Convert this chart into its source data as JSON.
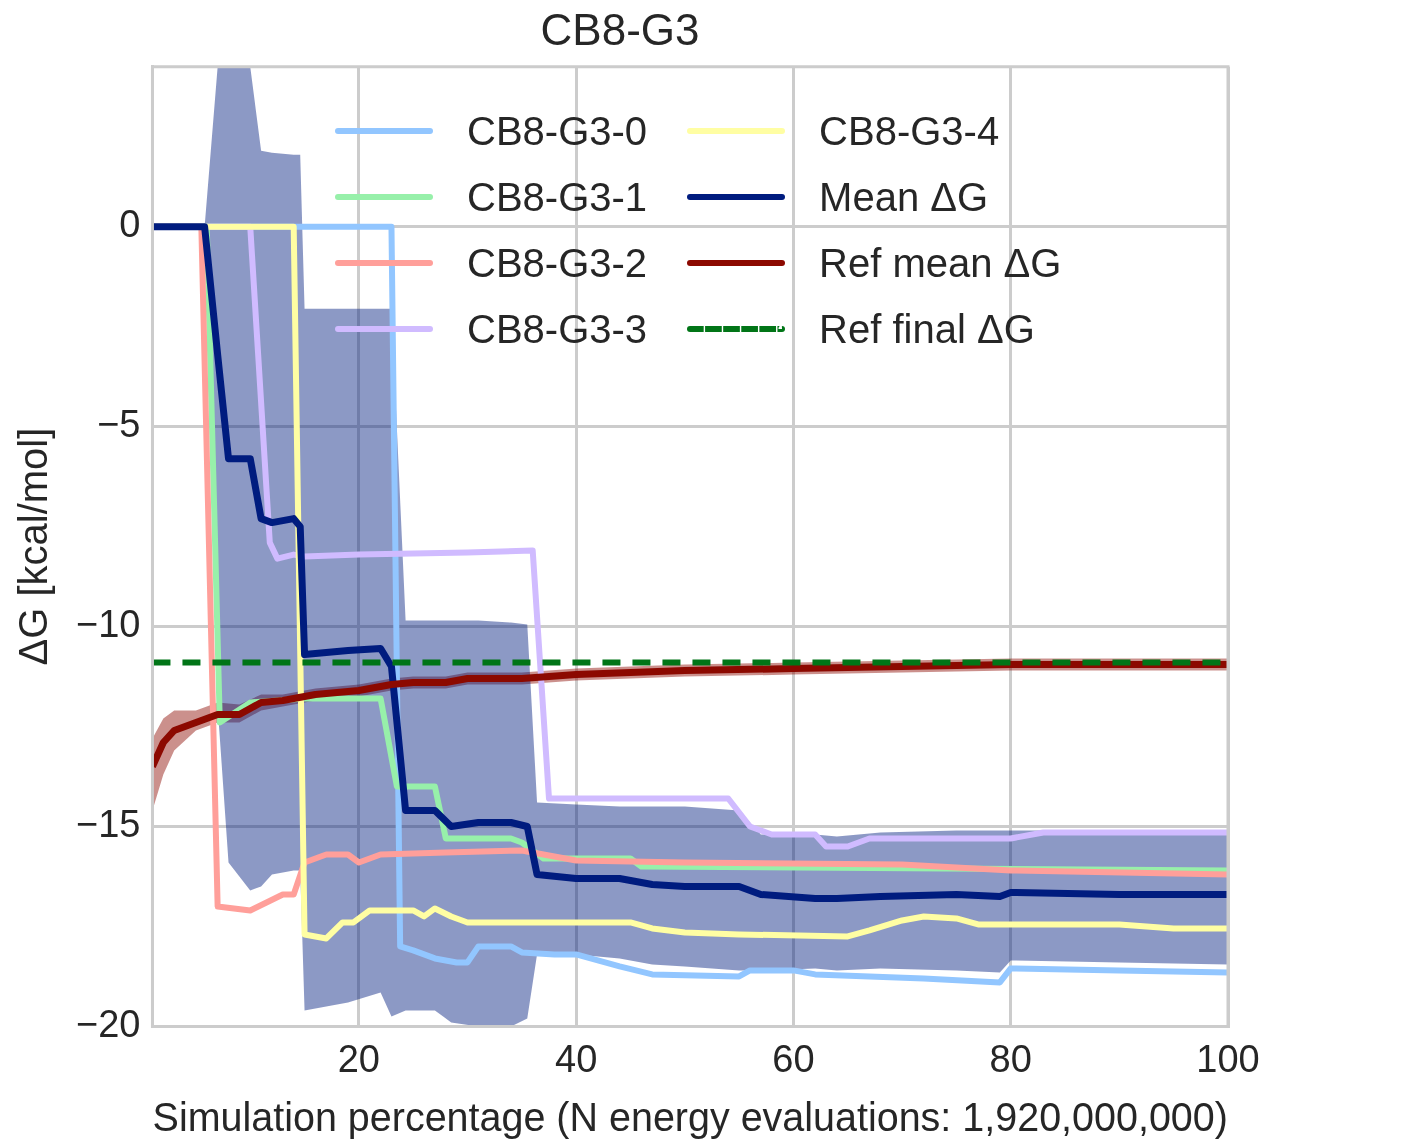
{
  "chart_data": {
    "type": "line",
    "title": "CB8-G3",
    "xlabel": "Simulation percentage (N energy evaluations: 1,920,000,000)",
    "ylabel": "ΔG [kcal/mol]",
    "xlim": [
      1,
      100
    ],
    "ylim": [
      -20,
      4
    ],
    "xticks": [
      20,
      40,
      60,
      80,
      100
    ],
    "yticks": [
      -20,
      -15,
      -10,
      -5,
      0
    ],
    "grid": true,
    "legend": "top",
    "line_style": "solid",
    "series": [
      {
        "name": "CB8-G3-0",
        "color": "#92c6ff",
        "x": [
          1,
          23,
          23.8,
          25,
          27,
          29,
          30,
          31,
          34,
          35,
          38,
          40,
          44,
          47,
          55,
          56,
          60,
          62,
          72,
          79,
          80,
          90,
          100
        ],
        "values": [
          0,
          0,
          -18.0,
          -18.1,
          -18.3,
          -18.4,
          -18.4,
          -18.0,
          -18.0,
          -18.15,
          -18.2,
          -18.2,
          -18.5,
          -18.7,
          -18.75,
          -18.6,
          -18.6,
          -18.7,
          -18.8,
          -18.9,
          -18.55,
          -18.6,
          -18.65
        ]
      },
      {
        "name": "CB8-G3-1",
        "color": "#97f0aa",
        "x": [
          1,
          6,
          7.2,
          10,
          15,
          22,
          23.5,
          27,
          28,
          34,
          35,
          37,
          45,
          46,
          100
        ],
        "values": [
          0,
          0,
          -12.4,
          -11.9,
          -11.8,
          -11.8,
          -14.0,
          -14.0,
          -15.3,
          -15.3,
          -15.4,
          -15.8,
          -15.8,
          -16.0,
          -16.1
        ]
      },
      {
        "name": "CB8-G3-2",
        "color": "#ff9f9a",
        "x": [
          1,
          5.5,
          7,
          10,
          13,
          14,
          15,
          17,
          19,
          20,
          22,
          28,
          35,
          37,
          40,
          50,
          70,
          80,
          100
        ],
        "values": [
          0,
          0,
          -17.0,
          -17.1,
          -16.7,
          -16.7,
          -15.9,
          -15.7,
          -15.7,
          -15.9,
          -15.7,
          -15.65,
          -15.6,
          -15.7,
          -15.85,
          -15.9,
          -15.95,
          -16.1,
          -16.2
        ]
      },
      {
        "name": "CB8-G3-3",
        "color": "#d0bbff",
        "x": [
          1,
          10,
          11.8,
          12.5,
          14,
          15,
          20,
          30,
          36,
          37.5,
          54,
          56,
          58,
          62,
          63,
          65,
          67,
          80,
          83,
          100
        ],
        "values": [
          0,
          0,
          -7.9,
          -8.3,
          -8.2,
          -8.25,
          -8.2,
          -8.15,
          -8.1,
          -14.3,
          -14.3,
          -15.0,
          -15.2,
          -15.2,
          -15.5,
          -15.5,
          -15.3,
          -15.3,
          -15.15,
          -15.15
        ]
      },
      {
        "name": "CB8-G3-4",
        "color": "#fffea3",
        "x": [
          1,
          14,
          15,
          17,
          18.5,
          19.5,
          21,
          25,
          26,
          27,
          28.5,
          30,
          45,
          47,
          50,
          55,
          65,
          67,
          70,
          72,
          75,
          77,
          90,
          95,
          100
        ],
        "values": [
          0,
          0,
          -17.7,
          -17.8,
          -17.4,
          -17.4,
          -17.1,
          -17.1,
          -17.25,
          -17.05,
          -17.25,
          -17.4,
          -17.4,
          -17.55,
          -17.65,
          -17.7,
          -17.75,
          -17.6,
          -17.35,
          -17.25,
          -17.3,
          -17.45,
          -17.45,
          -17.55,
          -17.55
        ]
      },
      {
        "name": "Mean ΔG",
        "color": "#001c7f",
        "x": [
          1,
          5.8,
          7,
          8,
          10,
          11,
          12,
          14,
          14.6,
          15,
          19,
          22,
          23,
          24.3,
          27,
          28.5,
          31,
          34,
          35.5,
          36.4,
          40,
          44,
          47,
          50,
          55,
          57,
          62,
          64,
          68,
          75,
          79,
          80,
          90,
          100
        ],
        "values": [
          0,
          0,
          -3.2,
          -5.8,
          -5.8,
          -7.3,
          -7.4,
          -7.3,
          -7.5,
          -10.7,
          -10.6,
          -10.55,
          -11.0,
          -14.6,
          -14.6,
          -15.0,
          -14.9,
          -14.9,
          -15.0,
          -16.2,
          -16.3,
          -16.3,
          -16.45,
          -16.5,
          -16.5,
          -16.7,
          -16.8,
          -16.8,
          -16.75,
          -16.7,
          -16.75,
          -16.65,
          -16.7,
          -16.7
        ],
        "lower": [
          0,
          0,
          -12,
          -15.9,
          -16.6,
          -16.5,
          -16.2,
          -16.1,
          -16.1,
          -19.6,
          -19.4,
          -19.15,
          -19.75,
          -19.6,
          -19.6,
          -19.9,
          -20,
          -20,
          -19.8,
          -18.2,
          -18.2,
          -18.3,
          -18.45,
          -18.5,
          -18.6,
          -18.6,
          -18.55,
          -18.6,
          -18.55,
          -18.6,
          -18.65,
          -18.35,
          -18.4,
          -18.45
        ],
        "upper": [
          0,
          0,
          4,
          4,
          4,
          1.9,
          1.85,
          1.8,
          1.8,
          -2.05,
          -2.05,
          -2.05,
          -2.05,
          -9.85,
          -9.85,
          -9.85,
          -9.85,
          -9.9,
          -9.95,
          -14.4,
          -14.45,
          -14.5,
          -14.5,
          -14.5,
          -14.6,
          -15.2,
          -15.2,
          -15.25,
          -15.15,
          -15.1,
          -15.1,
          -15.1,
          -15.1,
          -15.1
        ]
      },
      {
        "name": "Ref mean ΔG",
        "color": "#8c0900",
        "x": [
          1,
          2,
          3,
          5,
          7,
          9,
          11,
          13,
          16,
          20,
          23,
          25,
          28,
          30,
          35,
          40,
          45,
          50,
          60,
          70,
          80,
          90,
          100
        ],
        "values": [
          -13.5,
          -12.9,
          -12.6,
          -12.4,
          -12.2,
          -12.2,
          -11.9,
          -11.85,
          -11.7,
          -11.6,
          -11.45,
          -11.4,
          -11.4,
          -11.3,
          -11.3,
          -11.2,
          -11.15,
          -11.1,
          -11.05,
          -11.0,
          -10.95,
          -10.95,
          -10.95
        ],
        "lower": [
          -14.6,
          -13.7,
          -13.1,
          -12.6,
          -12.4,
          -12.4,
          -12.1,
          -12.0,
          -11.85,
          -11.75,
          -11.6,
          -11.55,
          -11.55,
          -11.45,
          -11.45,
          -11.35,
          -11.3,
          -11.25,
          -11.2,
          -11.15,
          -11.1,
          -11.1,
          -11.1
        ],
        "upper": [
          -12.8,
          -12.3,
          -12.1,
          -12.1,
          -11.9,
          -11.95,
          -11.7,
          -11.7,
          -11.55,
          -11.45,
          -11.3,
          -11.25,
          -11.25,
          -11.15,
          -11.15,
          -11.05,
          -11.0,
          -10.95,
          -10.9,
          -10.85,
          -10.8,
          -10.8,
          -10.8
        ]
      }
    ],
    "ref_lines": [
      {
        "axis": "y",
        "value": -10.9,
        "label": "Ref final ΔG",
        "color": "#017517",
        "line_style": "dashed"
      }
    ]
  }
}
